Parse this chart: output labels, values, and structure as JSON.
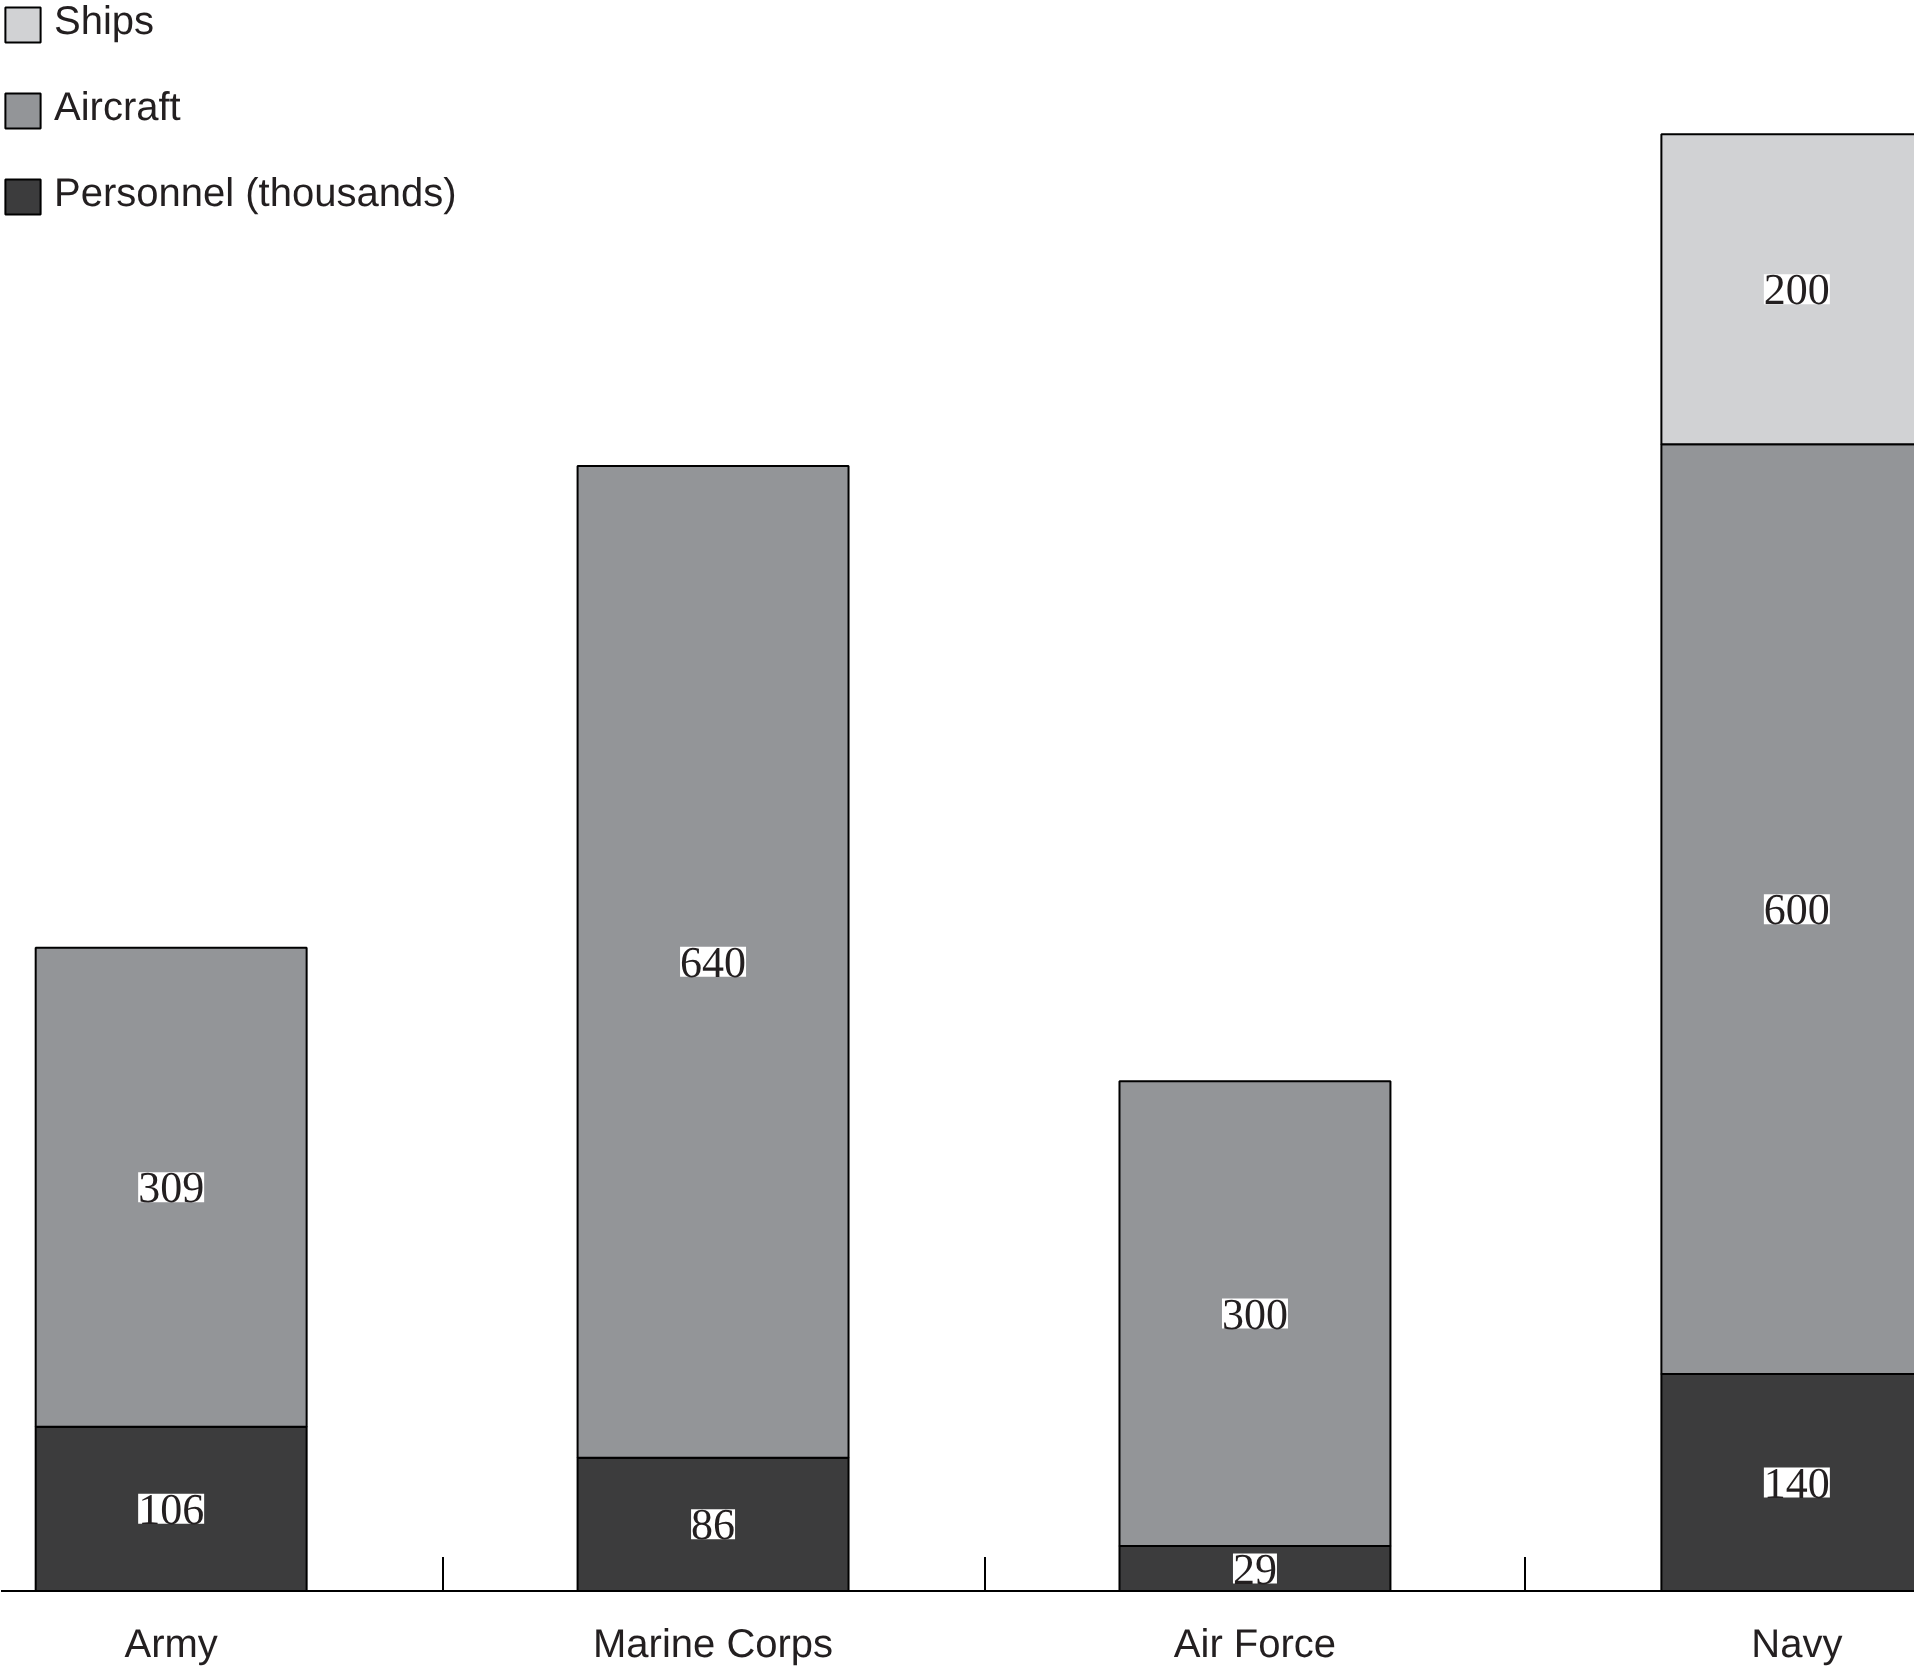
{
  "chart_data": {
    "type": "bar",
    "stacked": true,
    "data_labels": true,
    "legend": "top left",
    "grid": false,
    "categories": [
      "Army",
      "Marine Corps",
      "Air Force",
      "Navy"
    ],
    "ylim": [
      0,
      1026
    ],
    "series": [
      {
        "name": "Personnel (thousands)",
        "color": "#3c3c3d",
        "values": [
          106,
          86,
          29,
          140
        ]
      },
      {
        "name": "Aircraft",
        "color": "#939598",
        "values": [
          309,
          640,
          300,
          600
        ]
      },
      {
        "name": "Ships",
        "color": "#d1d2d4",
        "values": [
          null,
          null,
          null,
          200
        ]
      }
    ]
  }
}
